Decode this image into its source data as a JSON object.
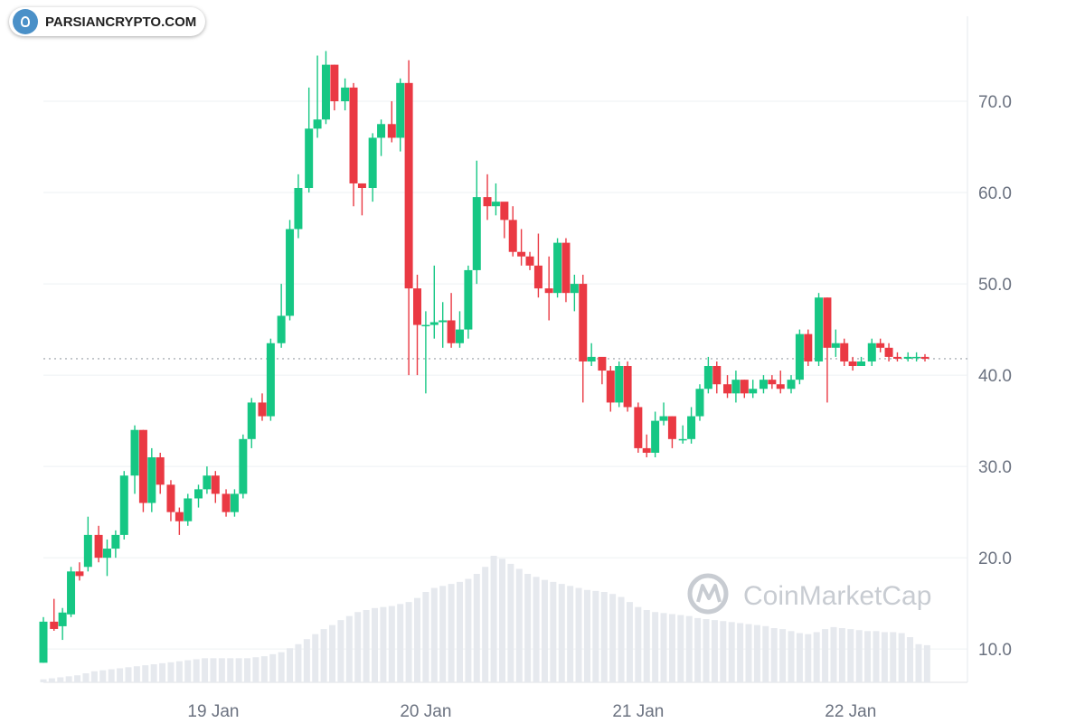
{
  "badge": {
    "text": "PARSIANCRYPTO.COM"
  },
  "watermark": {
    "text": "CoinMarketCap"
  },
  "colors": {
    "up": "#16c784",
    "down": "#ea3943",
    "grid": "#eef0f3",
    "volume": "#e6e9ee",
    "last_price_line": "#9aa0a8"
  },
  "chart_data": {
    "type": "candlestick",
    "y_axis": {
      "position": "right",
      "range": [
        2,
        80
      ],
      "ticks": [
        10,
        20,
        30,
        40,
        50,
        60,
        70
      ],
      "tick_labels": [
        "10.0",
        "20.0",
        "30.0",
        "40.0",
        "50.0",
        "60.0",
        "70.0"
      ]
    },
    "x_axis": {
      "range": [
        18.2,
        22.55
      ],
      "ticks": [
        19,
        20,
        21,
        22
      ],
      "tick_labels": [
        "19 Jan",
        "20 Jan",
        "21 Jan",
        "22 Jan"
      ]
    },
    "last_price": 41.8,
    "candles": [
      [
        18.2,
        8.5,
        13,
        13.5,
        8.5
      ],
      [
        18.25,
        13,
        12.2,
        15.5,
        12
      ],
      [
        18.29,
        12.5,
        14,
        14.5,
        11
      ],
      [
        18.33,
        13.8,
        18.5,
        19,
        13.5
      ],
      [
        18.37,
        18.5,
        18,
        19.5,
        17.5
      ],
      [
        18.41,
        19,
        22.5,
        24.5,
        18.5
      ],
      [
        18.46,
        22.5,
        20,
        23.5,
        19.5
      ],
      [
        18.5,
        20,
        21,
        22,
        18
      ],
      [
        18.54,
        21,
        22.5,
        23,
        20
      ],
      [
        18.58,
        22.5,
        29,
        29.5,
        22
      ],
      [
        18.63,
        29,
        34,
        34.5,
        27
      ],
      [
        18.67,
        34,
        26,
        34,
        25
      ],
      [
        18.71,
        26,
        31,
        32,
        25
      ],
      [
        18.75,
        31,
        28,
        31.5,
        27
      ],
      [
        18.8,
        28,
        25,
        28.5,
        24
      ],
      [
        18.84,
        25,
        24,
        25.5,
        22.5
      ],
      [
        18.88,
        24,
        26.5,
        27,
        23.5
      ],
      [
        18.93,
        26.5,
        27.5,
        28,
        25.5
      ],
      [
        18.97,
        27.5,
        29,
        30,
        27
      ],
      [
        19.01,
        29,
        27,
        29.5,
        26
      ],
      [
        19.06,
        27,
        25,
        27.5,
        24.5
      ],
      [
        19.1,
        25,
        27,
        27.5,
        24.5
      ],
      [
        19.14,
        27,
        33,
        33.5,
        26.5
      ],
      [
        19.18,
        33,
        37,
        37.5,
        32
      ],
      [
        19.23,
        37,
        35.5,
        38,
        35
      ],
      [
        19.27,
        35.5,
        43.5,
        44,
        35
      ],
      [
        19.32,
        43.5,
        46.5,
        50,
        43
      ],
      [
        19.36,
        46.5,
        56,
        57,
        46
      ],
      [
        19.4,
        56,
        60.5,
        62,
        55
      ],
      [
        19.45,
        60.5,
        67,
        71.5,
        60
      ],
      [
        19.49,
        67,
        68,
        75,
        66
      ],
      [
        19.53,
        68,
        74,
        75.5,
        67.5
      ],
      [
        19.57,
        74,
        70,
        74,
        69
      ],
      [
        19.62,
        70,
        71.5,
        72.5,
        69
      ],
      [
        19.66,
        71.5,
        61,
        72,
        58.5
      ],
      [
        19.7,
        61,
        60.5,
        61,
        57.5
      ],
      [
        19.75,
        60.5,
        66,
        66.5,
        59
      ],
      [
        19.79,
        66,
        67.5,
        68,
        64
      ],
      [
        19.84,
        67.5,
        66,
        70,
        65.5
      ],
      [
        19.88,
        66,
        72,
        72.5,
        64.5
      ],
      [
        19.92,
        72,
        49.5,
        74.5,
        40
      ],
      [
        19.96,
        49.5,
        45.5,
        51,
        40
      ],
      [
        20.0,
        45.5,
        45.5,
        47,
        38
      ],
      [
        20.04,
        45.5,
        45.8,
        52,
        44
      ],
      [
        20.08,
        45.8,
        46,
        48,
        43
      ],
      [
        20.12,
        46,
        43.5,
        49,
        43
      ],
      [
        20.16,
        43.5,
        45,
        47,
        43
      ],
      [
        20.2,
        45,
        51.5,
        52,
        44
      ],
      [
        20.24,
        51.5,
        59.5,
        63.5,
        50
      ],
      [
        20.29,
        59.5,
        58.5,
        62,
        57
      ],
      [
        20.33,
        58.5,
        59,
        61,
        57.5
      ],
      [
        20.37,
        59,
        57,
        58.5,
        55
      ],
      [
        20.41,
        57,
        53.5,
        58.5,
        53
      ],
      [
        20.45,
        53.5,
        53,
        56,
        52
      ],
      [
        20.49,
        53,
        52,
        53.5,
        51.5
      ],
      [
        20.53,
        52,
        49.5,
        55.5,
        48.5
      ],
      [
        20.58,
        49.5,
        49,
        53,
        46
      ],
      [
        20.62,
        49,
        54.5,
        55,
        48.5
      ],
      [
        20.66,
        54.5,
        49,
        55,
        48
      ],
      [
        20.7,
        49,
        50,
        51,
        47
      ],
      [
        20.74,
        50,
        41.5,
        51,
        37
      ],
      [
        20.78,
        41.5,
        42,
        43.5,
        41
      ],
      [
        20.83,
        42,
        40.5,
        41.5,
        39
      ],
      [
        20.87,
        40.5,
        37,
        41,
        36
      ],
      [
        20.91,
        37,
        41,
        41.5,
        36.5
      ],
      [
        20.95,
        41,
        36.5,
        41.5,
        36
      ],
      [
        21.0,
        36.5,
        32,
        37,
        31.5
      ],
      [
        21.04,
        32,
        31.5,
        33.5,
        31
      ],
      [
        21.08,
        31.5,
        35,
        36,
        31
      ],
      [
        21.12,
        35,
        35.5,
        37,
        34.5
      ],
      [
        21.16,
        35.5,
        33,
        35.5,
        32
      ],
      [
        21.21,
        33,
        33,
        34.5,
        32.5
      ],
      [
        21.25,
        33,
        35.5,
        36.5,
        32.5
      ],
      [
        21.29,
        35.5,
        38.5,
        39,
        35
      ],
      [
        21.33,
        38.5,
        41,
        42,
        38
      ],
      [
        21.37,
        41,
        39,
        41.5,
        38
      ],
      [
        21.42,
        39,
        38,
        40,
        37.5
      ],
      [
        21.46,
        38,
        39.5,
        40.5,
        37
      ],
      [
        21.5,
        39.5,
        38,
        39.5,
        37.5
      ],
      [
        21.54,
        38,
        38.5,
        39.5,
        37.5
      ],
      [
        21.59,
        38.5,
        39.5,
        40,
        38
      ],
      [
        21.63,
        39.5,
        39,
        40,
        38.5
      ],
      [
        21.67,
        39,
        38.5,
        40.5,
        38
      ],
      [
        21.72,
        38.5,
        39.5,
        40,
        38
      ],
      [
        21.76,
        39.5,
        44.5,
        45,
        39
      ],
      [
        21.8,
        44.5,
        41.5,
        45,
        41
      ],
      [
        21.85,
        41.5,
        48.5,
        49,
        41
      ],
      [
        21.89,
        48.5,
        43,
        48.5,
        37
      ],
      [
        21.93,
        43,
        43.5,
        45,
        42
      ],
      [
        21.97,
        43.5,
        41.5,
        44,
        41
      ],
      [
        22.01,
        41.5,
        41,
        42,
        40.5
      ],
      [
        22.05,
        41,
        41.5,
        42,
        41
      ],
      [
        22.1,
        41.5,
        43.5,
        44,
        41
      ],
      [
        22.14,
        43.5,
        43,
        44,
        42.5
      ],
      [
        22.18,
        43,
        42,
        43.5,
        41.5
      ],
      [
        22.22,
        42,
        41.8,
        42.5,
        41.5
      ],
      [
        22.27,
        41.8,
        42,
        42.5,
        41.5
      ],
      [
        22.31,
        42,
        42,
        42.5,
        41.5
      ],
      [
        22.35,
        42,
        41.8,
        42.3,
        41.5
      ]
    ],
    "volume": [
      [
        18.2,
        3
      ],
      [
        18.24,
        4
      ],
      [
        18.28,
        5
      ],
      [
        18.32,
        6
      ],
      [
        18.36,
        7
      ],
      [
        18.4,
        9
      ],
      [
        18.44,
        11
      ],
      [
        18.48,
        12
      ],
      [
        18.52,
        13
      ],
      [
        18.56,
        14
      ],
      [
        18.6,
        15
      ],
      [
        18.64,
        16
      ],
      [
        18.68,
        17
      ],
      [
        18.72,
        18
      ],
      [
        18.76,
        19
      ],
      [
        18.8,
        20
      ],
      [
        18.84,
        21
      ],
      [
        18.88,
        22
      ],
      [
        18.92,
        23
      ],
      [
        18.96,
        24
      ],
      [
        19.0,
        24
      ],
      [
        19.04,
        24
      ],
      [
        19.08,
        24
      ],
      [
        19.12,
        24
      ],
      [
        19.16,
        24
      ],
      [
        19.2,
        25
      ],
      [
        19.24,
        26
      ],
      [
        19.28,
        28
      ],
      [
        19.32,
        30
      ],
      [
        19.36,
        34
      ],
      [
        19.4,
        38
      ],
      [
        19.44,
        43
      ],
      [
        19.48,
        48
      ],
      [
        19.52,
        53
      ],
      [
        19.56,
        57
      ],
      [
        19.6,
        62
      ],
      [
        19.64,
        66
      ],
      [
        19.68,
        70
      ],
      [
        19.72,
        72
      ],
      [
        19.76,
        74
      ],
      [
        19.8,
        75
      ],
      [
        19.84,
        76
      ],
      [
        19.88,
        78
      ],
      [
        19.92,
        80
      ],
      [
        19.96,
        84
      ],
      [
        20.0,
        90
      ],
      [
        20.04,
        94
      ],
      [
        20.08,
        96
      ],
      [
        20.12,
        98
      ],
      [
        20.16,
        100
      ],
      [
        20.2,
        103
      ],
      [
        20.24,
        108
      ],
      [
        20.28,
        115
      ],
      [
        20.32,
        126
      ],
      [
        20.36,
        123
      ],
      [
        20.4,
        118
      ],
      [
        20.44,
        113
      ],
      [
        20.48,
        108
      ],
      [
        20.52,
        105
      ],
      [
        20.56,
        102
      ],
      [
        20.6,
        100
      ],
      [
        20.64,
        98
      ],
      [
        20.68,
        96
      ],
      [
        20.72,
        94
      ],
      [
        20.76,
        92
      ],
      [
        20.8,
        91
      ],
      [
        20.84,
        90
      ],
      [
        20.88,
        88
      ],
      [
        20.92,
        85
      ],
      [
        20.96,
        80
      ],
      [
        21.0,
        75
      ],
      [
        21.04,
        72
      ],
      [
        21.08,
        70
      ],
      [
        21.12,
        69
      ],
      [
        21.16,
        68
      ],
      [
        21.2,
        67
      ],
      [
        21.24,
        66
      ],
      [
        21.28,
        64
      ],
      [
        21.32,
        63
      ],
      [
        21.36,
        62
      ],
      [
        21.4,
        61
      ],
      [
        21.44,
        60
      ],
      [
        21.48,
        59
      ],
      [
        21.52,
        58
      ],
      [
        21.56,
        57
      ],
      [
        21.6,
        56
      ],
      [
        21.64,
        54
      ],
      [
        21.68,
        53
      ],
      [
        21.72,
        51
      ],
      [
        21.76,
        49
      ],
      [
        21.8,
        48
      ],
      [
        21.84,
        50
      ],
      [
        21.88,
        53
      ],
      [
        21.92,
        55
      ],
      [
        21.96,
        54
      ],
      [
        22.0,
        53
      ],
      [
        22.04,
        52
      ],
      [
        22.08,
        51
      ],
      [
        22.12,
        51
      ],
      [
        22.16,
        50
      ],
      [
        22.2,
        50
      ],
      [
        22.24,
        49
      ],
      [
        22.28,
        45
      ],
      [
        22.32,
        38
      ],
      [
        22.36,
        37
      ]
    ],
    "grid": true
  }
}
